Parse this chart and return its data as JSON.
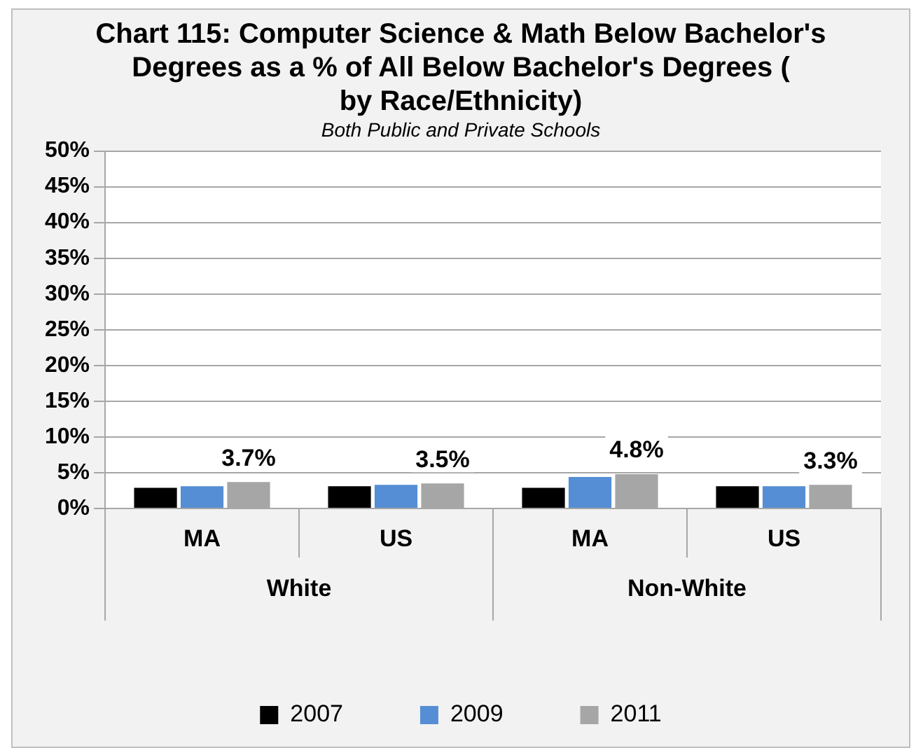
{
  "chart_data": {
    "type": "bar",
    "title": "Chart 115: Computer Science & Math Below Bachelor's Degrees as a % of All Below Bachelor's Degrees (by Race/Ethnicity)",
    "subtitle": "Both Public and Private Schools",
    "categories": [
      "MA",
      "US",
      "MA",
      "US"
    ],
    "series": [
      {
        "name": "2007",
        "color": "#000000",
        "values": [
          2.9,
          3.1,
          2.9,
          3.1
        ]
      },
      {
        "name": "2009",
        "color": "#558ed5",
        "values": [
          3.1,
          3.3,
          4.4,
          3.1
        ]
      },
      {
        "name": "2011",
        "color": "#a6a6a6",
        "values": [
          3.7,
          3.5,
          4.8,
          3.3
        ],
        "value_labels": [
          "3.7%",
          "3.5%",
          "4.8%",
          "3.3%"
        ]
      }
    ],
    "annotations": [
      "White",
      "Non-White"
    ],
    "ylim": [
      0,
      50
    ],
    "yticks": [
      {
        "value": 0,
        "label": "0%"
      },
      {
        "value": 5,
        "label": "5%"
      },
      {
        "value": 10,
        "label": "10%"
      },
      {
        "value": 15,
        "label": "15%"
      },
      {
        "value": 20,
        "label": "20%"
      },
      {
        "value": 25,
        "label": "25%"
      },
      {
        "value": 30,
        "label": "30%"
      },
      {
        "value": 35,
        "label": "35%"
      },
      {
        "value": 40,
        "label": "40%"
      },
      {
        "value": 45,
        "label": "45%"
      },
      {
        "value": 50,
        "label": "50%"
      }
    ],
    "grid": "y",
    "legend": "bottom"
  }
}
